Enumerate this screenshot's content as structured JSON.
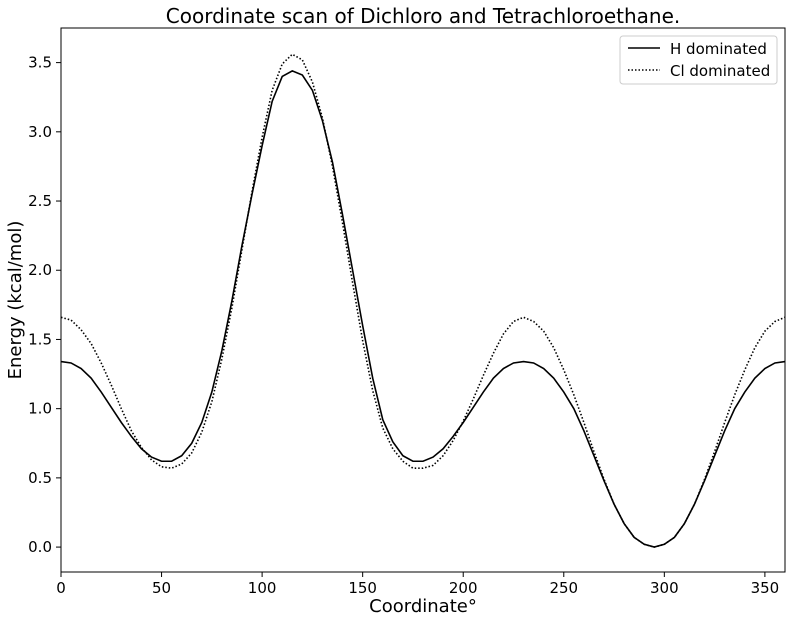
{
  "chart_data": {
    "type": "line",
    "title": "Coordinate scan of Dichloro and Tetrachloroethane.",
    "xlabel": "Coordinate°",
    "ylabel": "Energy (kcal/mol)",
    "xlim": [
      0,
      360
    ],
    "ylim": [
      -0.18,
      3.75
    ],
    "xticks": [
      0,
      50,
      100,
      150,
      200,
      250,
      300,
      350
    ],
    "xtick_labels": [
      "0",
      "50",
      "100",
      "150",
      "200",
      "250",
      "300",
      "350"
    ],
    "yticks": [
      0.0,
      0.5,
      1.0,
      1.5,
      2.0,
      2.5,
      3.0,
      3.5
    ],
    "ytick_labels": [
      "0.0",
      "0.5",
      "1.0",
      "1.5",
      "2.0",
      "2.5",
      "3.0",
      "3.5"
    ],
    "grid": false,
    "legend_position": "top-right",
    "series": [
      {
        "name": "H dominated",
        "style": "solid",
        "color": "#000000",
        "x": [
          0,
          5,
          10,
          15,
          20,
          25,
          30,
          35,
          40,
          45,
          50,
          55,
          60,
          65,
          70,
          75,
          80,
          85,
          90,
          95,
          100,
          105,
          110,
          115,
          120,
          125,
          130,
          135,
          140,
          145,
          150,
          155,
          160,
          165,
          170,
          175,
          180,
          185,
          190,
          195,
          200,
          205,
          210,
          215,
          220,
          225,
          230,
          235,
          240,
          245,
          250,
          255,
          260,
          265,
          270,
          275,
          280,
          285,
          290,
          295,
          300,
          305,
          310,
          315,
          320,
          325,
          330,
          335,
          340,
          345,
          350,
          355,
          360
        ],
        "y": [
          1.34,
          1.33,
          1.29,
          1.22,
          1.12,
          1.01,
          0.9,
          0.8,
          0.71,
          0.65,
          0.62,
          0.62,
          0.66,
          0.75,
          0.9,
          1.12,
          1.42,
          1.78,
          2.18,
          2.55,
          2.9,
          3.22,
          3.4,
          3.44,
          3.41,
          3.3,
          3.08,
          2.78,
          2.4,
          2.0,
          1.6,
          1.22,
          0.92,
          0.76,
          0.66,
          0.62,
          0.62,
          0.65,
          0.71,
          0.8,
          0.9,
          1.01,
          1.12,
          1.22,
          1.29,
          1.33,
          1.34,
          1.33,
          1.29,
          1.22,
          1.12,
          1.0,
          0.84,
          0.66,
          0.48,
          0.31,
          0.17,
          0.07,
          0.02,
          0.0,
          0.02,
          0.07,
          0.17,
          0.31,
          0.48,
          0.66,
          0.84,
          1.0,
          1.12,
          1.22,
          1.29,
          1.33,
          1.34
        ]
      },
      {
        "name": "Cl dominated",
        "style": "dotted",
        "color": "#000000",
        "x": [
          0,
          5,
          10,
          15,
          20,
          25,
          30,
          35,
          40,
          45,
          50,
          55,
          60,
          65,
          70,
          75,
          80,
          85,
          90,
          95,
          100,
          105,
          110,
          115,
          120,
          125,
          130,
          135,
          140,
          145,
          150,
          155,
          160,
          165,
          170,
          175,
          180,
          185,
          190,
          195,
          200,
          205,
          210,
          215,
          220,
          225,
          230,
          235,
          240,
          245,
          250,
          255,
          260,
          265,
          270,
          275,
          280,
          285,
          290,
          295,
          300,
          305,
          310,
          315,
          320,
          325,
          330,
          335,
          340,
          345,
          350,
          355,
          360
        ],
        "y": [
          1.66,
          1.64,
          1.57,
          1.47,
          1.33,
          1.17,
          1.0,
          0.84,
          0.72,
          0.63,
          0.58,
          0.57,
          0.6,
          0.68,
          0.83,
          1.05,
          1.36,
          1.73,
          2.15,
          2.57,
          2.96,
          3.3,
          3.49,
          3.56,
          3.52,
          3.36,
          3.1,
          2.75,
          2.34,
          1.91,
          1.49,
          1.13,
          0.86,
          0.71,
          0.62,
          0.57,
          0.57,
          0.59,
          0.66,
          0.77,
          0.91,
          1.07,
          1.24,
          1.4,
          1.54,
          1.63,
          1.66,
          1.63,
          1.56,
          1.44,
          1.28,
          1.1,
          0.9,
          0.69,
          0.49,
          0.31,
          0.17,
          0.07,
          0.02,
          0.0,
          0.02,
          0.07,
          0.17,
          0.31,
          0.49,
          0.69,
          0.9,
          1.1,
          1.28,
          1.44,
          1.56,
          1.63,
          1.66
        ]
      }
    ]
  }
}
